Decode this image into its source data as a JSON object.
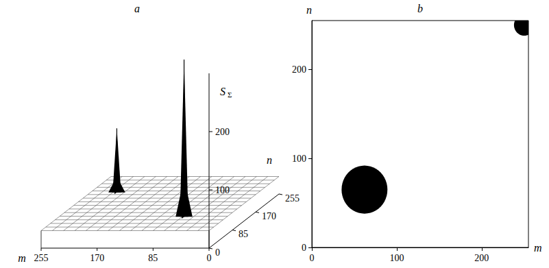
{
  "chart_data": [
    {
      "type": "surface3d",
      "title": "a",
      "xlabel": "m",
      "ylabel": "n",
      "zlabel": "SΣ",
      "xlim": [
        0,
        255
      ],
      "xticks": [
        0,
        85,
        170,
        255
      ],
      "ylim": [
        0,
        255
      ],
      "yticks": [
        0,
        85,
        170,
        255
      ],
      "zlim": [
        0,
        300
      ],
      "zticks": [
        100,
        200
      ],
      "floor": 30,
      "peaks": [
        {
          "m": 65,
          "n": 65,
          "value": 300
        },
        {
          "m": 215,
          "n": 180,
          "value": 140
        }
      ],
      "color": "#000000"
    },
    {
      "type": "binary_map",
      "title": "b",
      "xlabel": "m",
      "ylabel": "n",
      "xlim": [
        0,
        255
      ],
      "xticks": [
        0,
        100,
        200
      ],
      "ylim": [
        0,
        255
      ],
      "yticks": [
        0,
        100,
        200
      ],
      "regions": [
        {
          "m": 62,
          "n": 65,
          "radius": 27
        },
        {
          "m": 250,
          "n": 250,
          "radius": 12
        }
      ],
      "color": "#000000"
    }
  ]
}
